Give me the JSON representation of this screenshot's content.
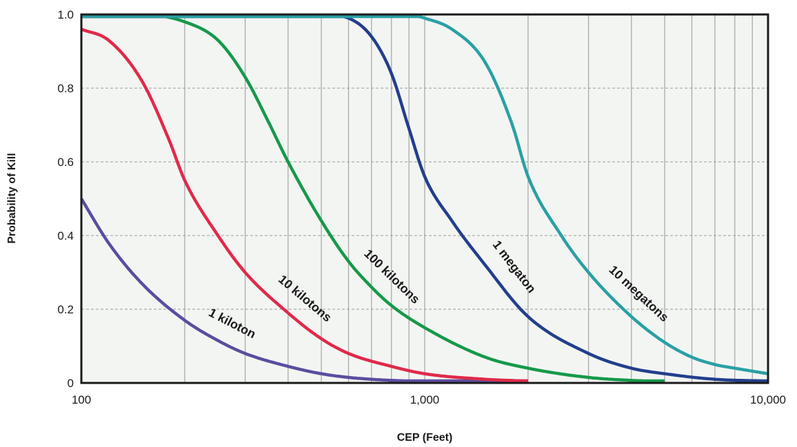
{
  "chart_data": {
    "type": "line",
    "xlabel": "CEP (Feet)",
    "ylabel": "Probability of Kill",
    "x_scale": "log",
    "xlim": [
      100,
      10000
    ],
    "ylim": [
      0,
      1.0
    ],
    "x_ticks": [
      100,
      1000,
      10000
    ],
    "x_tick_labels": [
      "100",
      "1,000",
      "10,000"
    ],
    "y_ticks": [
      0,
      0.2,
      0.4,
      0.6,
      0.8,
      1.0
    ],
    "y_tick_labels": [
      "0",
      "0.2",
      "0.4",
      "0.6",
      "0.8",
      "1.0"
    ],
    "grid": {
      "x": "log minor, solid gray",
      "y": "dashed gray"
    },
    "legend": "none (series labeled inline on curves)",
    "series": [
      {
        "name": "1 kiloton",
        "color": "#5a4da0",
        "x": [
          100,
          120,
          150,
          200,
          250,
          300,
          400,
          500,
          600,
          700,
          800,
          1000,
          1500,
          2000
        ],
        "y": [
          0.5,
          0.38,
          0.27,
          0.17,
          0.115,
          0.08,
          0.045,
          0.025,
          0.015,
          0.01,
          0.007,
          0.004,
          0.002,
          0.001
        ]
      },
      {
        "name": "10 kilotons",
        "color": "#e02a4a",
        "x": [
          100,
          120,
          150,
          180,
          200,
          250,
          300,
          400,
          500,
          600,
          800,
          1000,
          1500,
          2000
        ],
        "y": [
          0.96,
          0.93,
          0.82,
          0.66,
          0.55,
          0.4,
          0.3,
          0.19,
          0.12,
          0.08,
          0.045,
          0.025,
          0.01,
          0.005
        ]
      },
      {
        "name": "100 kilotons",
        "color": "#16994a",
        "x": [
          100,
          150,
          200,
          250,
          300,
          350,
          400,
          500,
          600,
          700,
          800,
          1000,
          1500,
          2000,
          3000,
          4000,
          5000
        ],
        "y": [
          1.0,
          1.0,
          0.98,
          0.93,
          0.83,
          0.71,
          0.6,
          0.44,
          0.33,
          0.26,
          0.21,
          0.15,
          0.07,
          0.04,
          0.015,
          0.007,
          0.004
        ]
      },
      {
        "name": "1 megaton",
        "color": "#233f8c",
        "x": [
          100,
          500,
          600,
          700,
          800,
          900,
          1000,
          1200,
          1500,
          2000,
          3000,
          4000,
          5000,
          7000,
          10000
        ],
        "y": [
          1.0,
          1.0,
          0.99,
          0.94,
          0.84,
          0.69,
          0.56,
          0.44,
          0.32,
          0.18,
          0.08,
          0.04,
          0.025,
          0.01,
          0.005
        ]
      },
      {
        "name": "10 megatons",
        "color": "#2aa0a4",
        "x": [
          100,
          900,
          1000,
          1200,
          1500,
          1800,
          2000,
          2500,
          3000,
          4000,
          5000,
          6000,
          7000,
          8000,
          10000
        ],
        "y": [
          1.0,
          1.0,
          0.99,
          0.96,
          0.87,
          0.7,
          0.56,
          0.4,
          0.3,
          0.18,
          0.11,
          0.07,
          0.05,
          0.04,
          0.025
        ]
      }
    ]
  }
}
